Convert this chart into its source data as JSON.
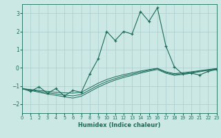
{
  "xlabel": "Humidex (Indice chaleur)",
  "xlim": [
    0,
    23
  ],
  "ylim": [
    -2.5,
    3.5
  ],
  "xticks": [
    0,
    1,
    2,
    3,
    4,
    5,
    6,
    7,
    8,
    9,
    10,
    11,
    12,
    13,
    14,
    15,
    16,
    17,
    18,
    19,
    20,
    21,
    22,
    23
  ],
  "yticks": [
    -2,
    -1,
    0,
    1,
    2,
    3
  ],
  "bg_color": "#cce8e4",
  "line_color": "#1a6b5a",
  "grid_color": "#aacccc",
  "spiky_x": [
    0,
    1,
    2,
    3,
    4,
    5,
    6,
    7,
    8,
    9,
    10,
    11,
    12,
    13,
    14,
    15,
    16,
    17,
    18,
    19,
    20,
    21,
    22,
    23
  ],
  "spiky_y": [
    -1.15,
    -1.3,
    -1.05,
    -1.4,
    -1.15,
    -1.55,
    -1.25,
    -1.35,
    -0.35,
    0.5,
    2.0,
    1.5,
    2.0,
    1.85,
    3.1,
    2.55,
    3.3,
    1.2,
    0.05,
    -0.35,
    -0.3,
    -0.4,
    -0.2,
    -0.1
  ],
  "smooth1_x": [
    0,
    1,
    2,
    3,
    4,
    5,
    6,
    7,
    8,
    9,
    10,
    11,
    12,
    13,
    14,
    15,
    16,
    17,
    18,
    19,
    20,
    21,
    22,
    23
  ],
  "smooth1_y": [
    -1.15,
    -1.2,
    -1.25,
    -1.3,
    -1.35,
    -1.38,
    -1.4,
    -1.35,
    -1.1,
    -0.85,
    -0.65,
    -0.5,
    -0.38,
    -0.28,
    -0.18,
    -0.1,
    -0.03,
    -0.22,
    -0.32,
    -0.27,
    -0.22,
    -0.16,
    -0.1,
    -0.04
  ],
  "smooth2_x": [
    0,
    1,
    2,
    3,
    4,
    5,
    6,
    7,
    8,
    9,
    10,
    11,
    12,
    13,
    14,
    15,
    16,
    17,
    18,
    19,
    20,
    21,
    22,
    23
  ],
  "smooth2_y": [
    -1.15,
    -1.22,
    -1.3,
    -1.38,
    -1.44,
    -1.5,
    -1.55,
    -1.47,
    -1.22,
    -0.97,
    -0.76,
    -0.6,
    -0.46,
    -0.35,
    -0.24,
    -0.14,
    -0.05,
    -0.26,
    -0.37,
    -0.32,
    -0.26,
    -0.19,
    -0.12,
    -0.06
  ],
  "smooth3_x": [
    0,
    1,
    2,
    3,
    4,
    5,
    6,
    7,
    8,
    9,
    10,
    11,
    12,
    13,
    14,
    15,
    16,
    17,
    18,
    19,
    20,
    21,
    22,
    23
  ],
  "smooth3_y": [
    -1.15,
    -1.25,
    -1.35,
    -1.45,
    -1.52,
    -1.6,
    -1.67,
    -1.57,
    -1.32,
    -1.07,
    -0.86,
    -0.68,
    -0.54,
    -0.42,
    -0.3,
    -0.19,
    -0.1,
    -0.3,
    -0.42,
    -0.37,
    -0.3,
    -0.22,
    -0.14,
    -0.08
  ]
}
